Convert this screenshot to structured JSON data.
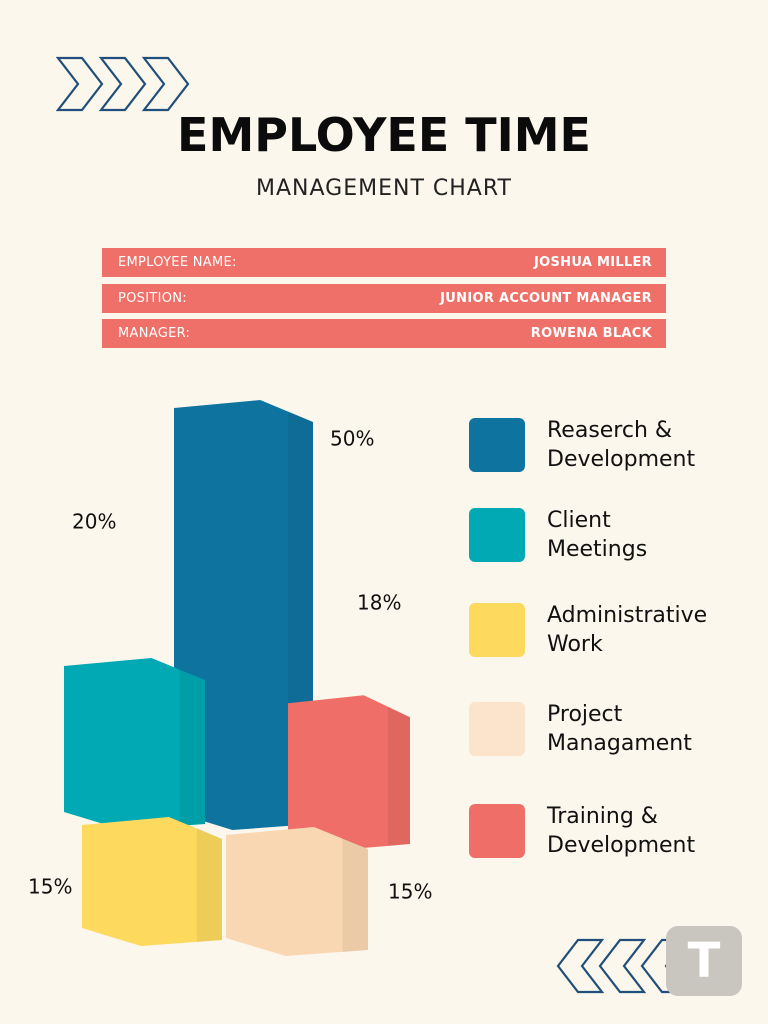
{
  "header": {
    "title": "EMPLOYEE TIME",
    "subtitle": "MANAGEMENT CHART"
  },
  "info": [
    {
      "label": "EMPLOYEE NAME:",
      "value": "JOSHUA MILLER"
    },
    {
      "label": "POSITION:",
      "value": "JUNIOR ACCOUNT MANAGER"
    },
    {
      "label": "MANAGER:",
      "value": "ROWENA BLACK"
    }
  ],
  "logo_letter": "T",
  "colors": {
    "background": "#fcf7ec",
    "info_bar": "#ef7068",
    "chevron": "#1f4f7a"
  },
  "chart_data": {
    "type": "bar",
    "categories": [
      "Reaserch & Development",
      "Client Meetings",
      "Administrative Work",
      "Project Managament",
      "Training & Development"
    ],
    "values": [
      50,
      20,
      15,
      15,
      18
    ],
    "data_labels": [
      "50%",
      "20%",
      "15%",
      "15%",
      "18%"
    ],
    "colors": [
      "#0f73a0",
      "#00a9b3",
      "#fdd95e",
      "#fad7b3",
      "#ef6e67"
    ],
    "legend": {
      "placement": "right",
      "items": [
        {
          "lines": [
            "Reaserch &",
            "Development"
          ],
          "color": "#0f73a0"
        },
        {
          "lines": [
            "Client",
            "Meetings"
          ],
          "color": "#00a9b3"
        },
        {
          "lines": [
            "Administrative",
            "Work"
          ],
          "color": "#fdd95e"
        },
        {
          "lines": [
            "Project",
            "Managament"
          ],
          "color": "#fbe3cc"
        },
        {
          "lines": [
            "Training &",
            "Development"
          ],
          "color": "#ef6e67"
        }
      ]
    }
  }
}
